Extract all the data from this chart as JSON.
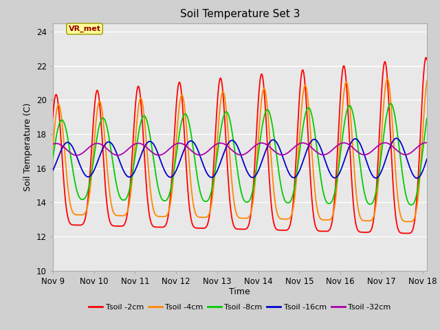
{
  "title": "Soil Temperature Set 3",
  "xlabel": "Time",
  "ylabel": "Soil Temperature (C)",
  "xlim": [
    9.3,
    18.1
  ],
  "ylim": [
    10,
    24.5
  ],
  "yticks": [
    10,
    12,
    14,
    16,
    18,
    20,
    22,
    24
  ],
  "xtick_positions": [
    9,
    10,
    11,
    12,
    13,
    14,
    15,
    16,
    17,
    18
  ],
  "xtick_labels": [
    "Nov 9",
    "Nov 10",
    "Nov 11",
    "Nov 12",
    "Nov 13",
    "Nov 14",
    "Nov 15",
    "Nov 16",
    "Nov 17",
    "Nov 18"
  ],
  "fig_bg_color": "#d0d0d0",
  "plot_bg_color": "#e8e8e8",
  "grid_color": "#ffffff",
  "annotation_text": "VR_met",
  "annotation_box_facecolor": "#ffff99",
  "annotation_box_edgecolor": "#999900",
  "annotation_text_color": "#990000",
  "series": [
    {
      "label": "Tsoil -2cm",
      "color": "#ff0000"
    },
    {
      "label": "Tsoil -4cm",
      "color": "#ff8800"
    },
    {
      "label": "Tsoil -8cm",
      "color": "#00cc00"
    },
    {
      "label": "Tsoil -16cm",
      "color": "#0000cc"
    },
    {
      "label": "Tsoil -32cm",
      "color": "#aa00aa"
    }
  ]
}
